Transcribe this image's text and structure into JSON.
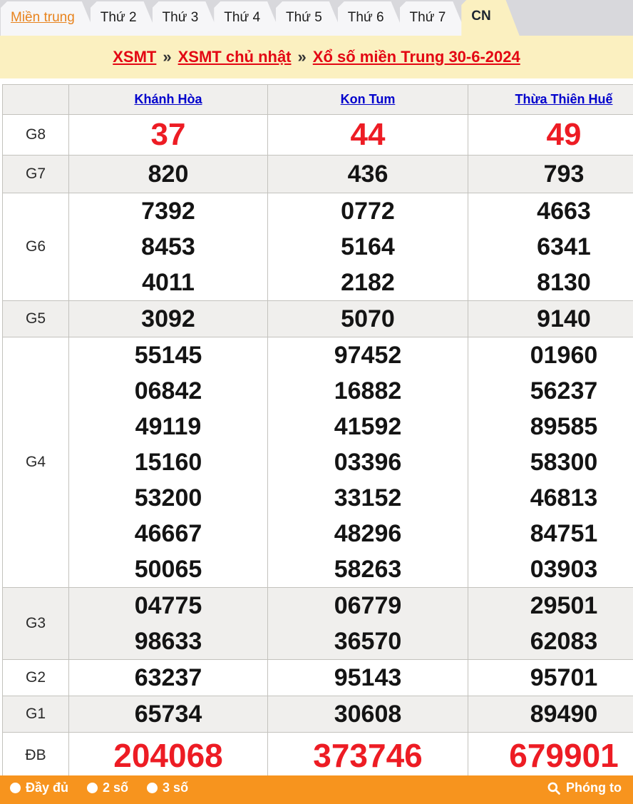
{
  "tabs": [
    {
      "label": "Miền trung",
      "style": "region",
      "active": false
    },
    {
      "label": "Thứ 2",
      "active": false
    },
    {
      "label": "Thứ 3",
      "active": false
    },
    {
      "label": "Thứ 4",
      "active": false
    },
    {
      "label": "Thứ 5",
      "active": false
    },
    {
      "label": "Thứ 6",
      "active": false
    },
    {
      "label": "Thứ 7",
      "active": false
    },
    {
      "label": "CN",
      "active": true
    }
  ],
  "breadcrumb": {
    "separator": "»",
    "items": [
      "XSMT",
      "XSMT chủ nhật",
      "Xổ số miền Trung 30-6-2024"
    ]
  },
  "table": {
    "provinces": [
      "Khánh Hòa",
      "Kon Tum",
      "Thừa Thiên Huế"
    ],
    "rows": [
      {
        "key": "G8",
        "label": "G8",
        "highlight": true,
        "values": [
          [
            "37"
          ],
          [
            "44"
          ],
          [
            "49"
          ]
        ]
      },
      {
        "key": "G7",
        "label": "G7",
        "highlight": false,
        "values": [
          [
            "820"
          ],
          [
            "436"
          ],
          [
            "793"
          ]
        ]
      },
      {
        "key": "G6",
        "label": "G6",
        "highlight": false,
        "values": [
          [
            "7392",
            "8453",
            "4011"
          ],
          [
            "0772",
            "5164",
            "2182"
          ],
          [
            "4663",
            "6341",
            "8130"
          ]
        ]
      },
      {
        "key": "G5",
        "label": "G5",
        "highlight": false,
        "values": [
          [
            "3092"
          ],
          [
            "5070"
          ],
          [
            "9140"
          ]
        ]
      },
      {
        "key": "G4",
        "label": "G4",
        "highlight": false,
        "values": [
          [
            "55145",
            "06842",
            "49119",
            "15160",
            "53200",
            "46667",
            "50065"
          ],
          [
            "97452",
            "16882",
            "41592",
            "03396",
            "33152",
            "48296",
            "58263"
          ],
          [
            "01960",
            "56237",
            "89585",
            "58300",
            "46813",
            "84751",
            "03903"
          ]
        ]
      },
      {
        "key": "G3",
        "label": "G3",
        "highlight": false,
        "values": [
          [
            "04775",
            "98633"
          ],
          [
            "06779",
            "36570"
          ],
          [
            "29501",
            "62083"
          ]
        ]
      },
      {
        "key": "G2",
        "label": "G2",
        "highlight": false,
        "values": [
          [
            "63237"
          ],
          [
            "95143"
          ],
          [
            "95701"
          ]
        ]
      },
      {
        "key": "G1",
        "label": "G1",
        "highlight": false,
        "values": [
          [
            "65734"
          ],
          [
            "30608"
          ],
          [
            "89490"
          ]
        ]
      },
      {
        "key": "DB",
        "label": "ĐB",
        "highlight": true,
        "values": [
          [
            "204068"
          ],
          [
            "373746"
          ],
          [
            "679901"
          ]
        ]
      }
    ]
  },
  "footer": {
    "options": [
      "Đầy đủ",
      "2 số",
      "3 số"
    ],
    "zoom_label": "Phóng to"
  },
  "colors": {
    "tabbar_bg": "#d8d8dc",
    "tab_bg": "#f6f6f8",
    "active_tab_bg": "#fbf0c0",
    "region_link_orange": "#e8831d",
    "breadcrumb_red": "#e30613",
    "province_link_blue": "#0000cc",
    "prize_red": "#ed1c24",
    "number_black": "#141414",
    "alt_row_gray": "#f0efed",
    "footer_orange": "#f7941e"
  }
}
